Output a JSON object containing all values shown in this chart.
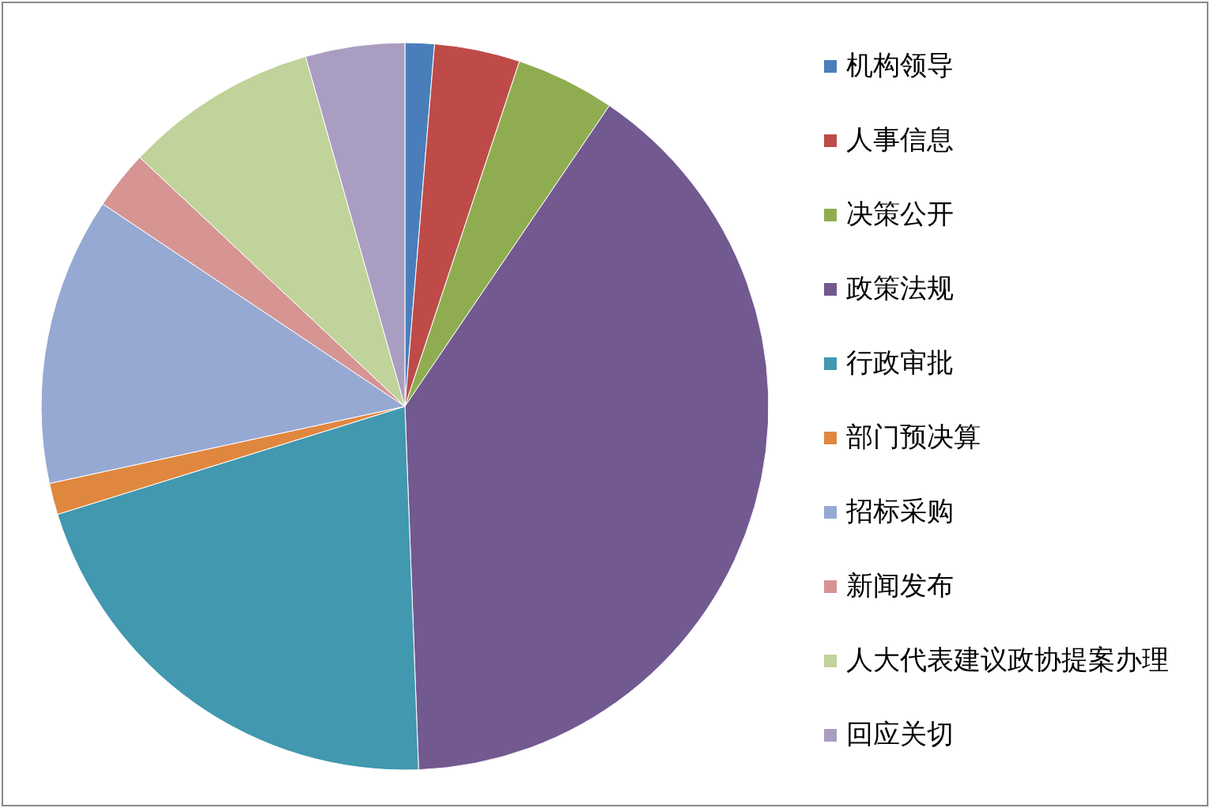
{
  "chart_data": {
    "type": "pie",
    "categories": [
      "机构领导",
      "人事信息",
      "决策公开",
      "政策法规",
      "行政审批",
      "部门预决算",
      "招标采购",
      "新闻发布",
      "人大代表建议政协提案办理",
      "回应关切"
    ],
    "values": [
      1.3,
      3.8,
      4.4,
      39.9,
      20.8,
      1.4,
      12.8,
      2.6,
      8.6,
      4.4
    ],
    "colors": [
      "#4a7ebb",
      "#be4b48",
      "#8fad50",
      "#725990",
      "#4198af",
      "#e0873f",
      "#95a9d3",
      "#d69492",
      "#bfd39a",
      "#aa9dc2"
    ],
    "legend": "right"
  }
}
